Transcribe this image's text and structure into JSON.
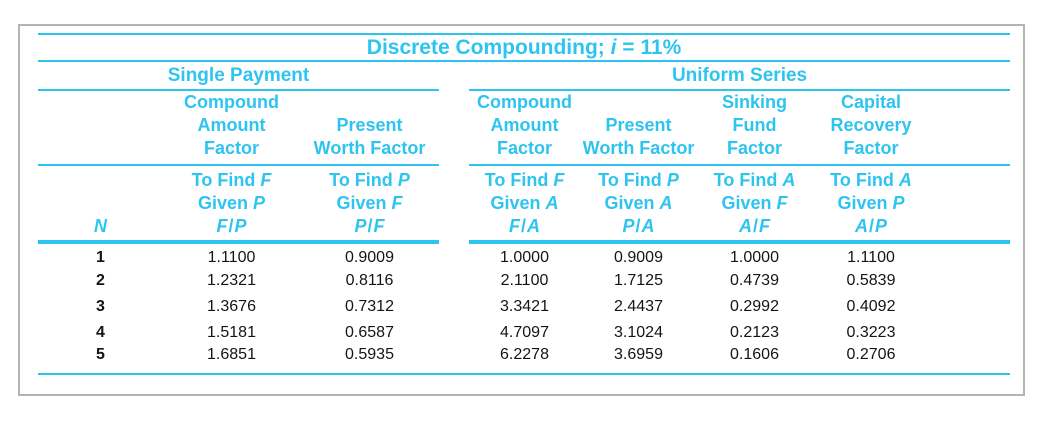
{
  "colors": {
    "accent": "#2ec4f0",
    "frame_border": "#b4b4b4",
    "data_text": "#141414",
    "background": "#ffffff"
  },
  "title": {
    "text_before": "Discrete Compounding; ",
    "var": "i",
    "text_after": " = 11%"
  },
  "groups": [
    {
      "id": "single-payment",
      "label": "Single Payment"
    },
    {
      "id": "uniform-series",
      "label": "Uniform Series"
    }
  ],
  "labels": {
    "to_find": "To Find",
    "given": "Given",
    "n_header": "N"
  },
  "chart_data": {
    "type": "table",
    "title": "Discrete Compounding; i = 11%",
    "interest_rate": "11%",
    "column_groups": [
      {
        "label": "Single Payment",
        "columns": [
          "F/P",
          "P/F"
        ]
      },
      {
        "label": "Uniform Series",
        "columns": [
          "F/A",
          "P/A",
          "A/F",
          "A/P"
        ]
      }
    ],
    "row_header": "N",
    "columns": [
      {
        "key": "F/P",
        "group": "Single Payment",
        "header_lines": [
          "Compound",
          "Amount",
          "Factor"
        ],
        "find_var": "F",
        "given_var": "P"
      },
      {
        "key": "P/F",
        "group": "Single Payment",
        "header_lines": [
          "Present",
          "Worth Factor"
        ],
        "find_var": "P",
        "given_var": "F"
      },
      {
        "key": "F/A",
        "group": "Uniform Series",
        "header_lines": [
          "Compound",
          "Amount",
          "Factor"
        ],
        "find_var": "F",
        "given_var": "A"
      },
      {
        "key": "P/A",
        "group": "Uniform Series",
        "header_lines": [
          "Present",
          "Worth Factor"
        ],
        "find_var": "P",
        "given_var": "A"
      },
      {
        "key": "A/F",
        "group": "Uniform Series",
        "header_lines": [
          "Sinking",
          "Fund",
          "Factor"
        ],
        "find_var": "A",
        "given_var": "F"
      },
      {
        "key": "A/P",
        "group": "Uniform Series",
        "header_lines": [
          "Capital",
          "Recovery",
          "Factor"
        ],
        "find_var": "A",
        "given_var": "P"
      }
    ],
    "rows": [
      {
        "n": "1",
        "values": [
          "1.1100",
          "0.9009",
          "1.0000",
          "0.9009",
          "1.0000",
          "1.1100"
        ]
      },
      {
        "n": "2",
        "values": [
          "1.2321",
          "0.8116",
          "2.1100",
          "1.7125",
          "0.4739",
          "0.5839"
        ]
      },
      {
        "n": "3",
        "values": [
          "1.3676",
          "0.7312",
          "3.3421",
          "2.4437",
          "0.2992",
          "0.4092"
        ]
      },
      {
        "n": "4",
        "values": [
          "1.5181",
          "0.6587",
          "4.7097",
          "3.1024",
          "0.2123",
          "0.3223"
        ]
      },
      {
        "n": "5",
        "values": [
          "1.6851",
          "0.5935",
          "6.2278",
          "3.6959",
          "0.1606",
          "0.2706"
        ]
      }
    ]
  }
}
